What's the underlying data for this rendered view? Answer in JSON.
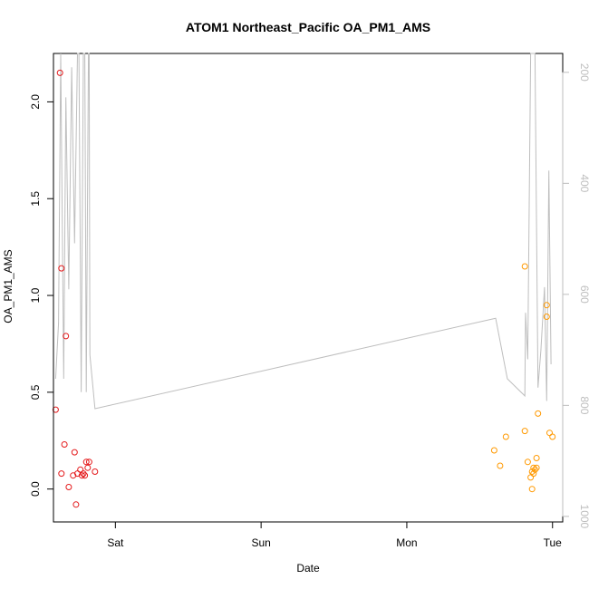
{
  "chart_data": {
    "type": "scatter",
    "title": "ATOM1 Northeast_Pacific OA_PM1_AMS",
    "xlabel": "Date",
    "ylabel": "OA_PM1_AMS",
    "x_ticks": [
      {
        "label": "Sat",
        "x": 1.0
      },
      {
        "label": "Sun",
        "x": 2.0
      },
      {
        "label": "Mon",
        "x": 3.0
      },
      {
        "label": "Tue",
        "x": 4.0
      }
    ],
    "xlim": [
      0.575,
      4.07
    ],
    "y_ticks": [
      0.0,
      0.5,
      1.0,
      1.5,
      2.0
    ],
    "ylim": [
      -0.17,
      2.25
    ],
    "y2_ticks": [
      200,
      400,
      600,
      800,
      1000
    ],
    "y2lim": [
      1010,
      166
    ],
    "y2_reversed": true,
    "y2_color": "#bebebe",
    "grid": false,
    "series": [
      {
        "color": "#e41a1c",
        "marker": "open-circle",
        "points": [
          {
            "x": 0.62,
            "y": 2.15
          },
          {
            "x": 0.63,
            "y": 1.14
          },
          {
            "x": 0.66,
            "y": 0.79
          },
          {
            "x": 0.59,
            "y": 0.41
          },
          {
            "x": 0.65,
            "y": 0.23
          },
          {
            "x": 0.72,
            "y": 0.19
          },
          {
            "x": 0.63,
            "y": 0.08
          },
          {
            "x": 0.71,
            "y": 0.07
          },
          {
            "x": 0.68,
            "y": 0.01
          },
          {
            "x": 0.74,
            "y": 0.08
          },
          {
            "x": 0.76,
            "y": 0.1
          },
          {
            "x": 0.77,
            "y": 0.07
          },
          {
            "x": 0.78,
            "y": 0.08
          },
          {
            "x": 0.79,
            "y": 0.07
          },
          {
            "x": 0.8,
            "y": 0.14
          },
          {
            "x": 0.81,
            "y": 0.11
          },
          {
            "x": 0.82,
            "y": 0.14
          },
          {
            "x": 0.86,
            "y": 0.09
          },
          {
            "x": 0.73,
            "y": -0.08
          }
        ]
      },
      {
        "color": "#ff9900",
        "marker": "open-circle",
        "points": [
          {
            "x": 3.81,
            "y": 1.15
          },
          {
            "x": 3.96,
            "y": 0.95
          },
          {
            "x": 3.96,
            "y": 0.89
          },
          {
            "x": 3.9,
            "y": 0.39
          },
          {
            "x": 3.81,
            "y": 0.3
          },
          {
            "x": 3.98,
            "y": 0.29
          },
          {
            "x": 4.0,
            "y": 0.27
          },
          {
            "x": 3.68,
            "y": 0.27
          },
          {
            "x": 3.6,
            "y": 0.2
          },
          {
            "x": 3.89,
            "y": 0.16
          },
          {
            "x": 3.83,
            "y": 0.14
          },
          {
            "x": 3.64,
            "y": 0.12
          },
          {
            "x": 3.87,
            "y": 0.11
          },
          {
            "x": 3.88,
            "y": 0.1
          },
          {
            "x": 3.89,
            "y": 0.11
          },
          {
            "x": 3.86,
            "y": 0.09
          },
          {
            "x": 3.87,
            "y": 0.08
          },
          {
            "x": 3.85,
            "y": 0.06
          },
          {
            "x": 3.86,
            "y": 0.0
          }
        ]
      },
      {
        "color": "#bebebe",
        "type": "line",
        "axis": "right",
        "points": [
          {
            "x": 0.59,
            "y": 752
          },
          {
            "x": 0.61,
            "y": 652
          },
          {
            "x": 0.625,
            "y": 152
          },
          {
            "x": 0.645,
            "y": 752
          },
          {
            "x": 0.66,
            "y": 245
          },
          {
            "x": 0.68,
            "y": 591
          },
          {
            "x": 0.7,
            "y": 191
          },
          {
            "x": 0.72,
            "y": 508
          },
          {
            "x": 0.74,
            "y": 152
          },
          {
            "x": 0.75,
            "y": 152
          },
          {
            "x": 0.765,
            "y": 776
          },
          {
            "x": 0.78,
            "y": 152
          },
          {
            "x": 0.79,
            "y": 152
          },
          {
            "x": 0.8,
            "y": 776
          },
          {
            "x": 0.815,
            "y": 152
          },
          {
            "x": 0.82,
            "y": 152
          },
          {
            "x": 0.825,
            "y": 709
          },
          {
            "x": 0.86,
            "y": 806
          },
          {
            "x": 3.61,
            "y": 643
          },
          {
            "x": 3.69,
            "y": 752
          },
          {
            "x": 3.81,
            "y": 783
          },
          {
            "x": 3.815,
            "y": 633
          },
          {
            "x": 3.83,
            "y": 717
          },
          {
            "x": 3.85,
            "y": 152
          },
          {
            "x": 3.865,
            "y": 152
          },
          {
            "x": 3.88,
            "y": 152
          },
          {
            "x": 3.9,
            "y": 768
          },
          {
            "x": 3.92,
            "y": 701
          },
          {
            "x": 3.945,
            "y": 587
          },
          {
            "x": 3.96,
            "y": 792
          },
          {
            "x": 3.975,
            "y": 377
          },
          {
            "x": 3.99,
            "y": 726
          }
        ]
      }
    ]
  }
}
